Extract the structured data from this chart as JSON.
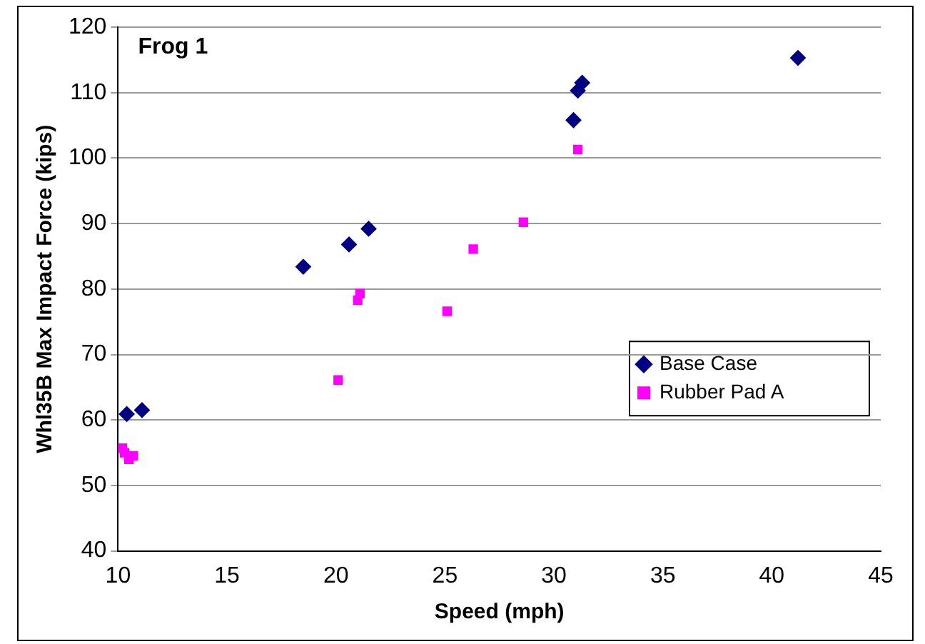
{
  "chart_data": {
    "type": "scatter",
    "xlabel": "Speed (mph)",
    "ylabel": "Whl35B Max Impact Force (kips)",
    "annotations": [
      "Frog 1"
    ],
    "xlim": [
      10,
      45
    ],
    "xticks": [
      10,
      15,
      20,
      25,
      30,
      35,
      40,
      45
    ],
    "ylim": [
      40,
      120
    ],
    "yticks": [
      40,
      50,
      60,
      70,
      80,
      90,
      100,
      110,
      120
    ],
    "grid": "y",
    "legend": "right",
    "series": [
      {
        "name": "Base Case",
        "color": "#000080",
        "marker": "diamond",
        "x": [
          10.4,
          11.1,
          18.5,
          20.6,
          21.5,
          30.9,
          31.1,
          31.3,
          41.2
        ],
        "values": [
          60.9,
          61.5,
          83.4,
          86.8,
          89.2,
          105.8,
          110.3,
          111.5,
          115.3
        ]
      },
      {
        "name": "Rubber Pad A",
        "color": "#ff00ff",
        "marker": "square",
        "x": [
          10.2,
          10.3,
          10.7,
          10.5,
          20.1,
          21.0,
          21.1,
          25.1,
          26.3,
          28.6,
          31.1
        ],
        "values": [
          55.7,
          55.0,
          54.5,
          54.0,
          66.1,
          78.3,
          79.3,
          76.6,
          86.1,
          90.2,
          101.3
        ]
      }
    ]
  }
}
